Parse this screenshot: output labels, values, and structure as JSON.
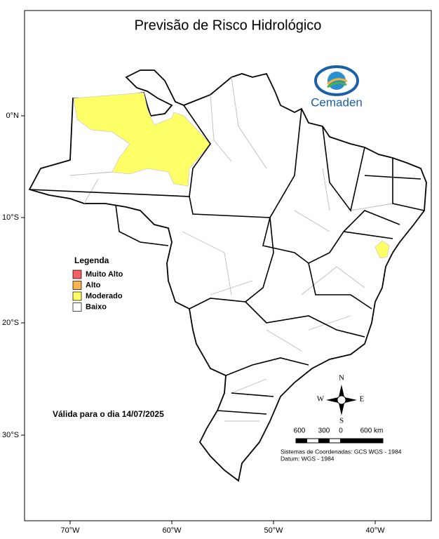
{
  "title": "Previsão de Risco Hidrológico",
  "logo": "Cemaden",
  "longitude_ticks": [
    "70°W",
    "60°W",
    "50°W",
    "40°W"
  ],
  "latitude_ticks": [
    "0°N",
    "10°S",
    "20°S",
    "30°S"
  ],
  "legend": {
    "title": "Legenda",
    "items": [
      {
        "label": "Muito Alto",
        "color": "#f4615f"
      },
      {
        "label": "Alto",
        "color": "#f7b34f"
      },
      {
        "label": "Moderado",
        "color": "#ffff66"
      },
      {
        "label": "Baixo",
        "color": "#ffffff"
      }
    ]
  },
  "validity": "Válida para o dia 14/07/2025",
  "compass": [
    "N",
    "S",
    "W",
    "E"
  ],
  "scale_bar": [
    "600",
    "300",
    "0",
    "600 km"
  ],
  "notes": [
    "Sistemas de Coordenadas: GCS WGS - 1984",
    "Datum: WGS - 1984"
  ]
}
